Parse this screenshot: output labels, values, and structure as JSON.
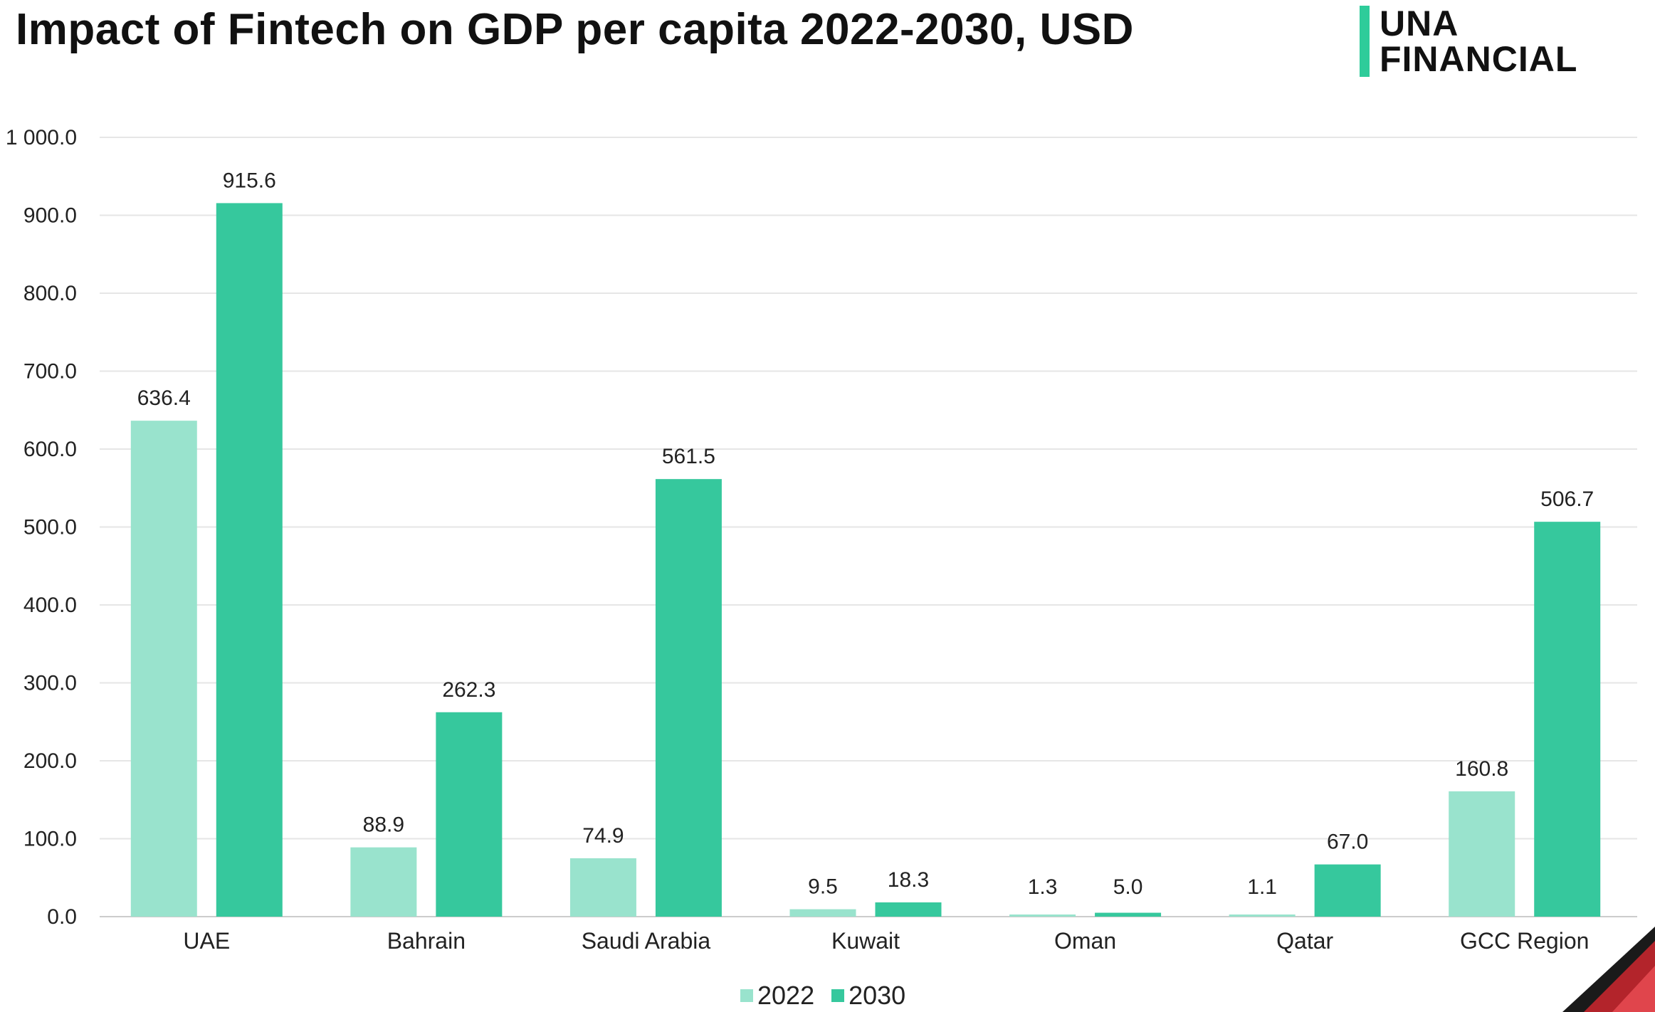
{
  "header": {
    "title": "Impact of Fintech on GDP per capita 2022-2030, USD"
  },
  "brand": {
    "line1": "UNA",
    "line2": "FINANCIAL",
    "accent_color": "#2ecc9a"
  },
  "chart_data": {
    "type": "bar",
    "title": "Impact of Fintech on GDP per capita 2022-2030, USD",
    "xlabel": "",
    "ylabel": "",
    "categories": [
      "UAE",
      "Bahrain",
      "Saudi Arabia",
      "Kuwait",
      "Oman",
      "Qatar",
      "GCC Region"
    ],
    "series": [
      {
        "name": "2022",
        "color": "#99e3cd",
        "values": [
          636.4,
          88.9,
          74.9,
          9.5,
          1.3,
          1.1,
          160.8
        ],
        "labels": [
          "636.4",
          "88.9",
          "74.9",
          "9.5",
          "1.3",
          "1.1",
          "160.8"
        ]
      },
      {
        "name": "2030",
        "color": "#36c89d",
        "values": [
          915.6,
          262.3,
          561.5,
          18.3,
          5.0,
          67.0,
          506.7
        ],
        "labels": [
          "915.6",
          "262.3",
          "561.5",
          "18.3",
          "5.0",
          "67.0",
          "506.7"
        ]
      }
    ],
    "ylim": [
      0,
      1000
    ],
    "yticks": [
      0,
      100,
      200,
      300,
      400,
      500,
      600,
      700,
      800,
      900,
      1000
    ],
    "ytick_labels": [
      "0.0",
      "100.0",
      "200.0",
      "300.0",
      "400.0",
      "500.0",
      "600.0",
      "700.0",
      "800.0",
      "900.0",
      "1 000.0"
    ],
    "grid": true,
    "legend_position": "bottom-center"
  }
}
